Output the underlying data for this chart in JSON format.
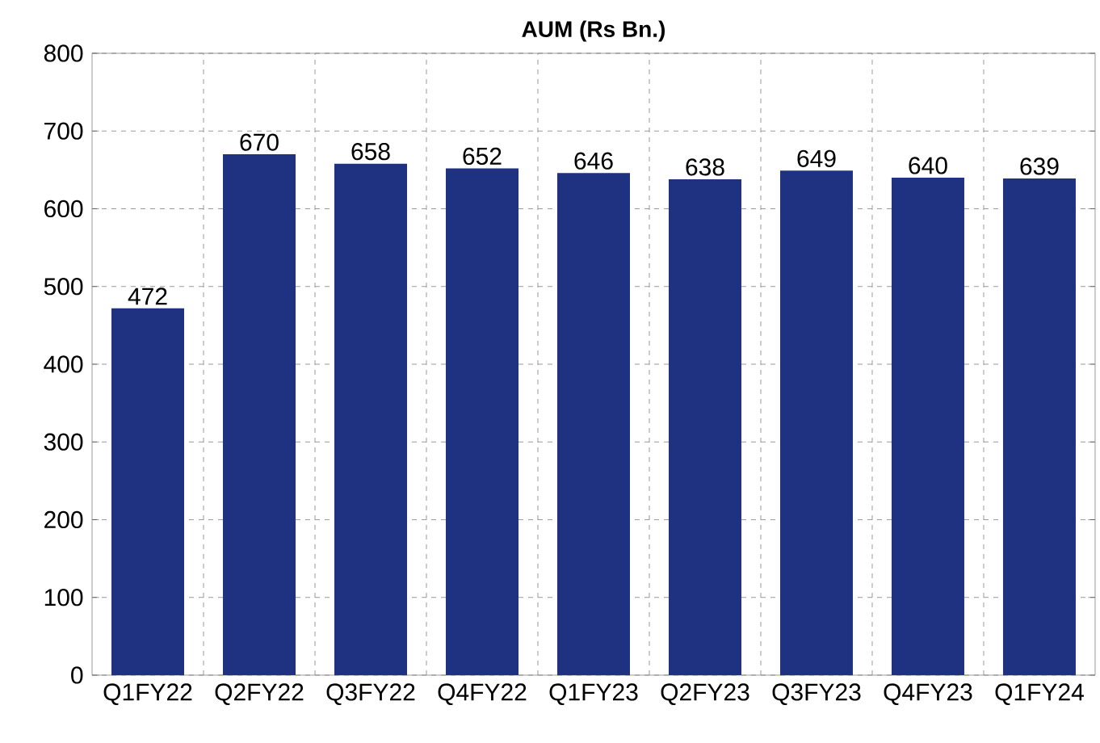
{
  "chart_data": {
    "type": "bar",
    "title": "AUM (Rs Bn.)",
    "categories": [
      "Q1FY22",
      "Q2FY22",
      "Q3FY22",
      "Q4FY22",
      "Q1FY23",
      "Q2FY23",
      "Q3FY23",
      "Q4FY23",
      "Q1FY24"
    ],
    "values": [
      472,
      670,
      658,
      652,
      646,
      638,
      649,
      640,
      639
    ],
    "color": "#1f3282",
    "ylim": [
      0,
      800
    ],
    "yticks": [
      0,
      100,
      200,
      300,
      400,
      500,
      600,
      700,
      800
    ],
    "grid": true,
    "data_labels": true
  }
}
